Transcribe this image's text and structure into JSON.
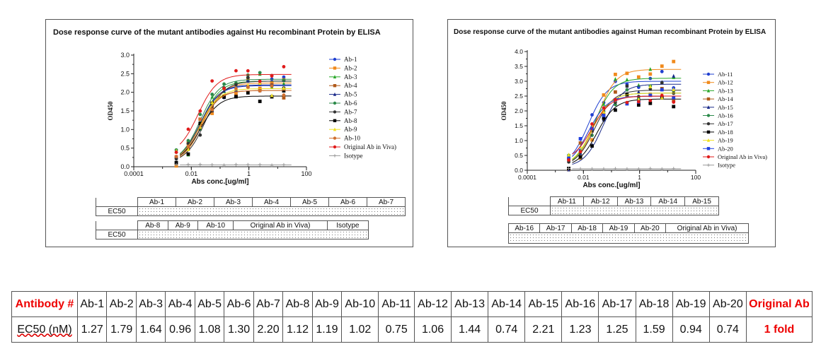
{
  "charts": [
    {
      "title": "Dose response curve of the mutant antibodies against Hu recombinant Protein by ELISA",
      "ylabel": "OD450",
      "xlabel": "Abs conc.[ug/ml]"
    },
    {
      "title": "Dose response curve of the mutant antibodies against Human recombinant Protein by ELISA",
      "ylabel": "OD450",
      "xlabel": "Abs conc.[ug/ml]"
    }
  ],
  "chart_data": [
    {
      "type": "scatter",
      "title": "Dose response curve of the mutant antibodies against Hu recombinant Protein by ELISA",
      "xlabel": "Abs conc.[ug/ml]",
      "ylabel": "OD450",
      "xscale": "log",
      "xlim": [
        0.0001,
        100
      ],
      "ylim": [
        0,
        3.0
      ],
      "xticks": [
        "0.0001",
        "0.01",
        "1",
        "100"
      ],
      "yticks": [
        "0.0",
        "0.5",
        "1.0",
        "1.5",
        "2.0",
        "2.5",
        "3.0"
      ],
      "legend_position": "right",
      "series": [
        {
          "name": "Ab-1",
          "color": "#1f3fd0",
          "marker": "circle",
          "bottom": 0.1,
          "top": 2.18,
          "ec50": 0.02
        },
        {
          "name": "Ab-2",
          "color": "#f08a1c",
          "marker": "square",
          "bottom": 0.08,
          "top": 2.25,
          "ec50": 0.025
        },
        {
          "name": "Ab-3",
          "color": "#2aa82a",
          "marker": "triangle",
          "bottom": 0.1,
          "top": 2.3,
          "ec50": 0.022
        },
        {
          "name": "Ab-4",
          "color": "#b05a1a",
          "marker": "square",
          "bottom": 0.1,
          "top": 2.05,
          "ec50": 0.018
        },
        {
          "name": "Ab-5",
          "color": "#1a2a8a",
          "marker": "triangle",
          "bottom": 0.1,
          "top": 2.2,
          "ec50": 0.02
        },
        {
          "name": "Ab-6",
          "color": "#2c8a4a",
          "marker": "circle",
          "bottom": 0.1,
          "top": 2.35,
          "ec50": 0.02
        },
        {
          "name": "Ab-7",
          "color": "#333333",
          "marker": "circle",
          "bottom": 0.1,
          "top": 2.3,
          "ec50": 0.03
        },
        {
          "name": "Ab-8",
          "color": "#000000",
          "marker": "square",
          "bottom": 0.1,
          "top": 1.9,
          "ec50": 0.02
        },
        {
          "name": "Ab-9",
          "color": "#f0e020",
          "marker": "triangle",
          "bottom": 0.1,
          "top": 2.1,
          "ec50": 0.02
        },
        {
          "name": "Ab-10",
          "color": "#d07030",
          "marker": "circle",
          "bottom": 0.1,
          "top": 2.05,
          "ec50": 0.02
        },
        {
          "name": "Original Ab in Viva)",
          "color": "#e01a1a",
          "marker": "circle",
          "bottom": 0.32,
          "top": 2.48,
          "ec50": 0.017
        },
        {
          "name": "Isotype",
          "color": "#999999",
          "marker": "cross",
          "bottom": 0.05,
          "top": 0.05,
          "ec50": 1
        }
      ]
    },
    {
      "type": "scatter",
      "title": "Dose response curve of the mutant antibodies against Human recombinant Protein by ELISA",
      "xlabel": "Abs conc.[ug/ml]",
      "ylabel": "OD450",
      "xscale": "log",
      "xlim": [
        0.0001,
        100
      ],
      "ylim": [
        0,
        4.0
      ],
      "xticks": [
        "0.0001",
        "0.01",
        "1",
        "100"
      ],
      "yticks": [
        "0.0",
        "0.5",
        "1.0",
        "1.5",
        "2.0",
        "2.5",
        "3.0",
        "3.5",
        "4.0"
      ],
      "legend_position": "right",
      "series": [
        {
          "name": "Ab-11",
          "color": "#1f3fd0",
          "marker": "circle",
          "bottom": 0.1,
          "top": 3.0,
          "ec50": 0.015
        },
        {
          "name": "Ab-12",
          "color": "#f08a1c",
          "marker": "square",
          "bottom": 0.1,
          "top": 3.4,
          "ec50": 0.03
        },
        {
          "name": "Ab-13",
          "color": "#2aa82a",
          "marker": "triangle",
          "bottom": 0.1,
          "top": 3.1,
          "ec50": 0.025
        },
        {
          "name": "Ab-14",
          "color": "#b05a1a",
          "marker": "square",
          "bottom": 0.1,
          "top": 2.5,
          "ec50": 0.015
        },
        {
          "name": "Ab-15",
          "color": "#1a2a8a",
          "marker": "triangle",
          "bottom": 0.1,
          "top": 2.9,
          "ec50": 0.05
        },
        {
          "name": "Ab-16",
          "color": "#2c8a4a",
          "marker": "circle",
          "bottom": 0.1,
          "top": 2.6,
          "ec50": 0.02
        },
        {
          "name": "Ab-17",
          "color": "#333333",
          "marker": "circle",
          "bottom": 0.1,
          "top": 2.7,
          "ec50": 0.025
        },
        {
          "name": "Ab-18",
          "color": "#000000",
          "marker": "square",
          "bottom": 0.1,
          "top": 2.4,
          "ec50": 0.03
        },
        {
          "name": "Ab-19",
          "color": "#f0e020",
          "marker": "triangle",
          "bottom": 0.1,
          "top": 2.6,
          "ec50": 0.02
        },
        {
          "name": "Ab-20",
          "color": "#2040e0",
          "marker": "square",
          "bottom": 0.1,
          "top": 2.5,
          "ec50": 0.015
        },
        {
          "name": "Original Ab in Viva)",
          "color": "#e01a1a",
          "marker": "circle",
          "bottom": 0.3,
          "top": 2.5,
          "ec50": 0.02
        },
        {
          "name": "Isotype",
          "color": "#999999",
          "marker": "cross",
          "bottom": 0.05,
          "top": 0.05,
          "ec50": 1
        }
      ]
    },
    {
      "type": "table",
      "header_label": "Antibody #",
      "row_label": "EC50 (nM)",
      "categories": [
        "Ab-1",
        "Ab-2",
        "Ab-3",
        "Ab-4",
        "Ab-5",
        "Ab-6",
        "Ab-7",
        "Ab-8",
        "Ab-9",
        "Ab-10",
        "Ab-11",
        "Ab-12",
        "Ab-13",
        "Ab-14",
        "Ab-15",
        "Ab-16",
        "Ab-17",
        "Ab-18",
        "Ab-19",
        "Ab-20",
        "Original Ab"
      ],
      "values": [
        "1.27",
        "1.79",
        "1.64",
        "0.96",
        "1.08",
        "1.30",
        "2.20",
        "1.12",
        "1.19",
        "1.02",
        "0.75",
        "1.06",
        "1.44",
        "0.74",
        "2.21",
        "1.23",
        "1.25",
        "1.59",
        "0.94",
        "0.74",
        "1 fold"
      ]
    }
  ],
  "mini_tables": {
    "left": {
      "row1": [
        "Ab-1",
        "Ab-2",
        "Ab-3",
        "Ab-4",
        "Ab-5",
        "Ab-6",
        "Ab-7"
      ],
      "row2": [
        "Ab-8",
        "Ab-9",
        "Ab-10",
        "Original Ab in Viva)",
        "Isotype"
      ],
      "ec50_label": "EC50"
    },
    "right": {
      "row1": [
        "Ab-11",
        "Ab-12",
        "Ab-13",
        "Ab-14",
        "Ab-15"
      ],
      "row2": [
        "Ab-16",
        "Ab-17",
        "Ab-18",
        "Ab-19",
        "Ab-20",
        "Original Ab in Viva)"
      ],
      "ec50_label": "EC50"
    }
  }
}
